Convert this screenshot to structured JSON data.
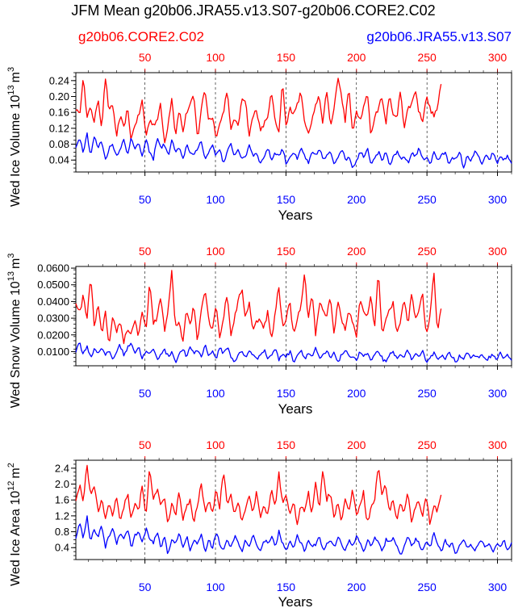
{
  "title": "JFM Mean g20b06.JRA55.v13.S07-g20b06.CORE2.C02",
  "legend": {
    "left_label": "g20b06.CORE2.C02",
    "right_label": "g20b06.JRA55.v13.S07"
  },
  "colors": {
    "core": "#ff0000",
    "jra": "#0000ff",
    "axis": "#000000",
    "grid": "#000000"
  },
  "chart_data": [
    {
      "type": "line",
      "ylabel": "Wed Ice Volume 10",
      "ylabel_exp": "13",
      "ylabel_unit": "m",
      "ylabel_unit_exp": "3",
      "xlabel": "Years",
      "xlim_core": [
        1,
        262
      ],
      "xlim_jra": [
        1,
        310
      ],
      "ylim": [
        0.01,
        0.26
      ],
      "yticks": [
        0.04,
        0.08,
        0.12,
        0.16,
        0.2,
        0.24
      ],
      "ytick_labels": [
        "0.04",
        "0.08",
        "0.12",
        "0.16",
        "0.20",
        "0.24"
      ],
      "top_ticks": [
        50,
        100,
        150,
        200,
        250,
        300
      ],
      "top_tick_labels": [
        "50",
        "100",
        "150",
        "200",
        "250",
        "300"
      ],
      "bottom_ticks": [
        50,
        100,
        150,
        200,
        250,
        300
      ],
      "bottom_tick_labels": [
        "50",
        "100",
        "150",
        "200",
        "250",
        "300"
      ],
      "series": [
        {
          "name": "g20b06.CORE2.C02",
          "x_start": 1,
          "anchors": [
            0.17,
            0.15,
            0.255,
            0.14,
            0.18,
            0.13,
            0.2,
            0.12,
            0.25,
            0.16,
            0.18,
            0.1,
            0.15,
            0.12,
            0.17,
            0.09,
            0.13,
            0.15,
            0.19,
            0.1,
            0.14,
            0.13,
            0.14,
            0.18,
            0.08,
            0.13,
            0.2,
            0.1,
            0.17,
            0.11,
            0.16,
            0.18,
            0.2,
            0.09,
            0.17,
            0.22,
            0.14,
            0.15,
            0.1,
            0.13,
            0.16,
            0.22,
            0.11,
            0.15,
            0.12,
            0.2,
            0.19,
            0.1,
            0.15,
            0.17,
            0.11,
            0.13,
            0.15,
            0.21,
            0.14,
            0.1,
            0.24,
            0.12,
            0.17,
            0.16,
            0.18,
            0.21,
            0.14,
            0.11,
            0.14,
            0.18,
            0.2,
            0.13,
            0.22,
            0.12,
            0.17,
            0.25,
            0.2,
            0.14,
            0.22,
            0.11,
            0.16,
            0.14,
            0.17,
            0.21,
            0.1,
            0.15,
            0.17,
            0.2,
            0.13,
            0.2,
            0.16,
            0.14,
            0.22,
            0.12,
            0.17,
            0.18,
            0.22,
            0.16,
            0.14,
            0.2,
            0.17,
            0.15,
            0.17,
            0.23
          ]
        },
        {
          "name": "g20b06.JRA55.v13.S07",
          "x_start": 1,
          "anchors": [
            0.07,
            0.1,
            0.06,
            0.11,
            0.05,
            0.1,
            0.07,
            0.09,
            0.04,
            0.07,
            0.08,
            0.05,
            0.07,
            0.09,
            0.05,
            0.1,
            0.07,
            0.08,
            0.05,
            0.09,
            0.06,
            0.04,
            0.1,
            0.07,
            0.08,
            0.05,
            0.09,
            0.06,
            0.07,
            0.04,
            0.08,
            0.06,
            0.05,
            0.07,
            0.09,
            0.04,
            0.06,
            0.08,
            0.05,
            0.07,
            0.03,
            0.06,
            0.08,
            0.05,
            0.07,
            0.04,
            0.05,
            0.08,
            0.05,
            0.06,
            0.03,
            0.05,
            0.07,
            0.04,
            0.06,
            0.05,
            0.07,
            0.03,
            0.05,
            0.06,
            0.04,
            0.07,
            0.05,
            0.03,
            0.06,
            0.05,
            0.07,
            0.04,
            0.05,
            0.06,
            0.03,
            0.05,
            0.07,
            0.04,
            0.05,
            0.02,
            0.04,
            0.06,
            0.05,
            0.07,
            0.03,
            0.05,
            0.06,
            0.04,
            0.06,
            0.02,
            0.05,
            0.06,
            0.04,
            0.05,
            0.03,
            0.06,
            0.05,
            0.07,
            0.04,
            0.05,
            0.03,
            0.06,
            0.04,
            0.05,
            0.06,
            0.03,
            0.05,
            0.04,
            0.06,
            0.02,
            0.05,
            0.04,
            0.06,
            0.05,
            0.03,
            0.05,
            0.04,
            0.06,
            0.03,
            0.05,
            0.04,
            0.05,
            0.03
          ]
        }
      ]
    },
    {
      "type": "line",
      "ylabel": "Wed Snow Volume 10",
      "ylabel_exp": "13",
      "ylabel_unit": "m",
      "ylabel_unit_exp": "3",
      "xlabel": "Years",
      "xlim_core": [
        1,
        262
      ],
      "xlim_jra": [
        1,
        310
      ],
      "ylim": [
        0.0015,
        0.061
      ],
      "yticks": [
        0.01,
        0.02,
        0.03,
        0.04,
        0.05,
        0.06
      ],
      "ytick_labels": [
        "0.0100",
        "0.0200",
        "0.0300",
        "0.0400",
        "0.0500",
        "0.0600"
      ],
      "top_ticks": [
        50,
        100,
        150,
        200,
        250,
        300
      ],
      "top_tick_labels": [
        "50",
        "100",
        "150",
        "200",
        "250",
        "300"
      ],
      "bottom_ticks": [
        50,
        100,
        150,
        200,
        250,
        300
      ],
      "bottom_tick_labels": [
        "50",
        "100",
        "150",
        "200",
        "250",
        "300"
      ],
      "series": [
        {
          "name": "g20b06.CORE2.C02",
          "x_start": 1,
          "anchors": [
            0.04,
            0.032,
            0.044,
            0.028,
            0.056,
            0.025,
            0.038,
            0.02,
            0.034,
            0.012,
            0.03,
            0.022,
            0.028,
            0.016,
            0.024,
            0.02,
            0.03,
            0.018,
            0.034,
            0.022,
            0.052,
            0.026,
            0.03,
            0.044,
            0.022,
            0.034,
            0.058,
            0.024,
            0.028,
            0.016,
            0.036,
            0.026,
            0.038,
            0.015,
            0.036,
            0.048,
            0.03,
            0.022,
            0.04,
            0.018,
            0.03,
            0.045,
            0.02,
            0.03,
            0.04,
            0.048,
            0.03,
            0.04,
            0.022,
            0.028,
            0.03,
            0.024,
            0.034,
            0.016,
            0.032,
            0.05,
            0.025,
            0.03,
            0.04,
            0.02,
            0.03,
            0.036,
            0.058,
            0.028,
            0.046,
            0.02,
            0.04,
            0.034,
            0.03,
            0.044,
            0.02,
            0.04,
            0.03,
            0.024,
            0.034,
            0.028,
            0.018,
            0.04,
            0.035,
            0.03,
            0.044,
            0.024,
            0.059,
            0.02,
            0.03,
            0.034,
            0.04,
            0.02,
            0.028,
            0.042,
            0.025,
            0.045,
            0.03,
            0.035,
            0.044,
            0.02,
            0.03,
            0.059,
            0.022,
            0.037
          ]
        },
        {
          "name": "g20b06.JRA55.v13.S07",
          "x_start": 1,
          "anchors": [
            0.01,
            0.016,
            0.008,
            0.014,
            0.006,
            0.012,
            0.009,
            0.013,
            0.007,
            0.011,
            0.005,
            0.01,
            0.014,
            0.008,
            0.012,
            0.016,
            0.009,
            0.013,
            0.006,
            0.01,
            0.008,
            0.012,
            0.005,
            0.009,
            0.011,
            0.007,
            0.01,
            0.004,
            0.008,
            0.012,
            0.006,
            0.013,
            0.009,
            0.011,
            0.007,
            0.014,
            0.008,
            0.01,
            0.006,
            0.012,
            0.009,
            0.013,
            0.007,
            0.004,
            0.008,
            0.01,
            0.006,
            0.011,
            0.008,
            0.005,
            0.009,
            0.011,
            0.006,
            0.008,
            0.012,
            0.005,
            0.009,
            0.007,
            0.01,
            0.004,
            0.008,
            0.011,
            0.006,
            0.009,
            0.007,
            0.012,
            0.005,
            0.008,
            0.01,
            0.006,
            0.009,
            0.004,
            0.008,
            0.011,
            0.006,
            0.008,
            0.005,
            0.01,
            0.007,
            0.009,
            0.004,
            0.008,
            0.01,
            0.006,
            0.003,
            0.008,
            0.01,
            0.005,
            0.009,
            0.007,
            0.011,
            0.005,
            0.008,
            0.006,
            0.01,
            0.004,
            0.007,
            0.009,
            0.006,
            0.008,
            0.005,
            0.009,
            0.007,
            0.004,
            0.008,
            0.006,
            0.01,
            0.005,
            0.008,
            0.006,
            0.009,
            0.004,
            0.007,
            0.008,
            0.005,
            0.009,
            0.006,
            0.008,
            0.004
          ]
        }
      ]
    },
    {
      "type": "line",
      "ylabel": "Wed Ice Area 10",
      "ylabel_exp": "12",
      "ylabel_unit": "m",
      "ylabel_unit_exp": "2",
      "xlabel": "Years",
      "xlim_core": [
        1,
        262
      ],
      "xlim_jra": [
        1,
        310
      ],
      "ylim": [
        0.1,
        2.6
      ],
      "yticks": [
        0.4,
        0.8,
        1.2,
        1.6,
        2.0,
        2.4
      ],
      "ytick_labels": [
        "0.4",
        "0.8",
        "1.2",
        "1.6",
        "2.0",
        "2.4"
      ],
      "top_ticks": [
        50,
        100,
        150,
        200,
        250,
        300
      ],
      "top_tick_labels": [
        "50",
        "100",
        "150",
        "200",
        "250",
        "300"
      ],
      "bottom_ticks": [
        50,
        100,
        150,
        200,
        250,
        300
      ],
      "bottom_tick_labels": [
        "50",
        "100",
        "150",
        "200",
        "250",
        "300"
      ],
      "series": [
        {
          "name": "g20b06.CORE2.C02",
          "x_start": 1,
          "anchors": [
            1.6,
            2.0,
            1.5,
            2.5,
            1.7,
            2.0,
            1.3,
            1.6,
            1.1,
            1.5,
            1.2,
            1.7,
            1.0,
            1.4,
            1.8,
            1.1,
            1.5,
            1.3,
            2.0,
            1.2,
            2.4,
            1.6,
            1.9,
            1.4,
            1.7,
            1.0,
            1.5,
            1.2,
            1.8,
            1.1,
            1.4,
            1.6,
            1.0,
            1.5,
            2.0,
            1.3,
            1.6,
            1.2,
            1.9,
            1.4,
            2.4,
            1.5,
            1.8,
            1.2,
            1.6,
            1.0,
            1.4,
            1.7,
            1.3,
            1.8,
            1.1,
            1.5,
            1.2,
            1.9,
            1.4,
            2.3,
            1.5,
            1.7,
            1.2,
            1.6,
            1.0,
            1.5,
            1.3,
            1.8,
            1.2,
            2.0,
            1.4,
            2.4,
            1.6,
            1.8,
            1.2,
            1.5,
            1.1,
            1.6,
            1.3,
            1.9,
            1.2,
            1.5,
            1.8,
            1.0,
            1.4,
            1.6,
            2.5,
            1.7,
            2.0,
            1.3,
            1.6,
            1.1,
            1.5,
            1.3,
            1.8,
            1.0,
            1.4,
            1.6,
            1.2,
            1.7,
            1.0,
            1.5,
            1.3,
            1.75
          ]
        },
        {
          "name": "g20b06.JRA55.v13.S07",
          "x_start": 1,
          "anchors": [
            0.6,
            1.1,
            0.6,
            1.2,
            0.5,
            0.9,
            0.6,
            1.0,
            0.4,
            0.7,
            0.9,
            0.5,
            0.8,
            0.6,
            0.9,
            0.4,
            0.7,
            0.8,
            0.5,
            0.9,
            0.6,
            0.5,
            0.8,
            0.4,
            0.7,
            0.2,
            0.6,
            0.5,
            0.8,
            0.4,
            0.7,
            0.3,
            0.6,
            0.5,
            0.7,
            0.3,
            0.6,
            0.4,
            0.8,
            0.5,
            0.3,
            0.6,
            0.4,
            0.7,
            0.5,
            0.3,
            0.6,
            0.4,
            0.7,
            0.5,
            0.3,
            0.6,
            0.5,
            0.7,
            0.4,
            0.8,
            0.5,
            0.3,
            0.6,
            0.4,
            0.7,
            0.5,
            0.3,
            0.6,
            0.4,
            0.5,
            0.7,
            0.3,
            0.5,
            0.6,
            0.4,
            0.7,
            0.5,
            0.3,
            0.6,
            0.4,
            0.7,
            0.5,
            0.3,
            0.6,
            0.4,
            0.7,
            0.5,
            0.3,
            0.6,
            0.5,
            0.7,
            0.4,
            0.2,
            0.5,
            0.7,
            0.4,
            0.6,
            0.5,
            0.3,
            0.6,
            0.4,
            0.8,
            0.5,
            0.3,
            0.6,
            0.4,
            0.5,
            0.2,
            0.5,
            0.6,
            0.4,
            0.5,
            0.3,
            0.5,
            0.6,
            0.4,
            0.5,
            0.3,
            0.5,
            0.4,
            0.6,
            0.3,
            0.5
          ]
        }
      ]
    }
  ]
}
